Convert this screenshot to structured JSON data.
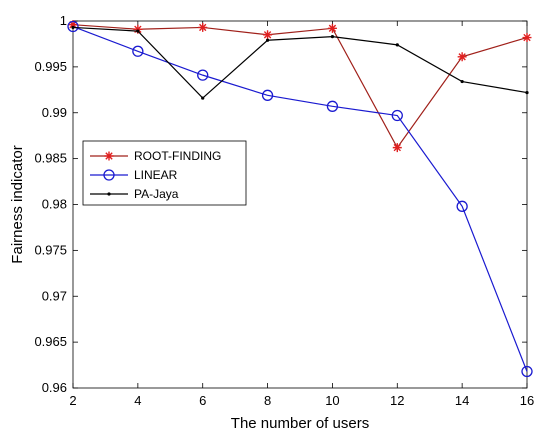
{
  "chart_data": {
    "type": "line",
    "xlabel": "The number of users",
    "ylabel": "Fairness indicator",
    "x": [
      2,
      4,
      6,
      8,
      10,
      12,
      14,
      16
    ],
    "xlim": [
      2,
      16
    ],
    "ylim": [
      0.96,
      1
    ],
    "xticks": [
      "2",
      "4",
      "6",
      "8",
      "10",
      "12",
      "14",
      "16"
    ],
    "yticks": [
      "0.96",
      "0.965",
      "0.97",
      "0.975",
      "0.98",
      "0.985",
      "0.99",
      "0.995",
      "1"
    ],
    "grid": false,
    "legend_position": "left",
    "series": [
      {
        "name": "ROOT-FINDING",
        "color": "#a0201a",
        "marker_color": "#e02020",
        "marker": "asterisk",
        "values": [
          0.9996,
          0.9991,
          0.9993,
          0.9985,
          0.9992,
          0.9862,
          0.9961,
          0.9982
        ]
      },
      {
        "name": "LINEAR",
        "color": "#1a1ad0",
        "marker_color": "#1a1ad0",
        "marker": "circle",
        "values": [
          0.9994,
          0.9967,
          0.9941,
          0.9919,
          0.9907,
          0.9897,
          0.9798,
          0.9618
        ]
      },
      {
        "name": "PA-Jaya",
        "color": "#000000",
        "marker_color": "#000000",
        "marker": "dot",
        "values": [
          0.9993,
          0.9989,
          0.9916,
          0.9979,
          0.9983,
          0.9974,
          0.9934,
          0.9922
        ]
      }
    ]
  }
}
